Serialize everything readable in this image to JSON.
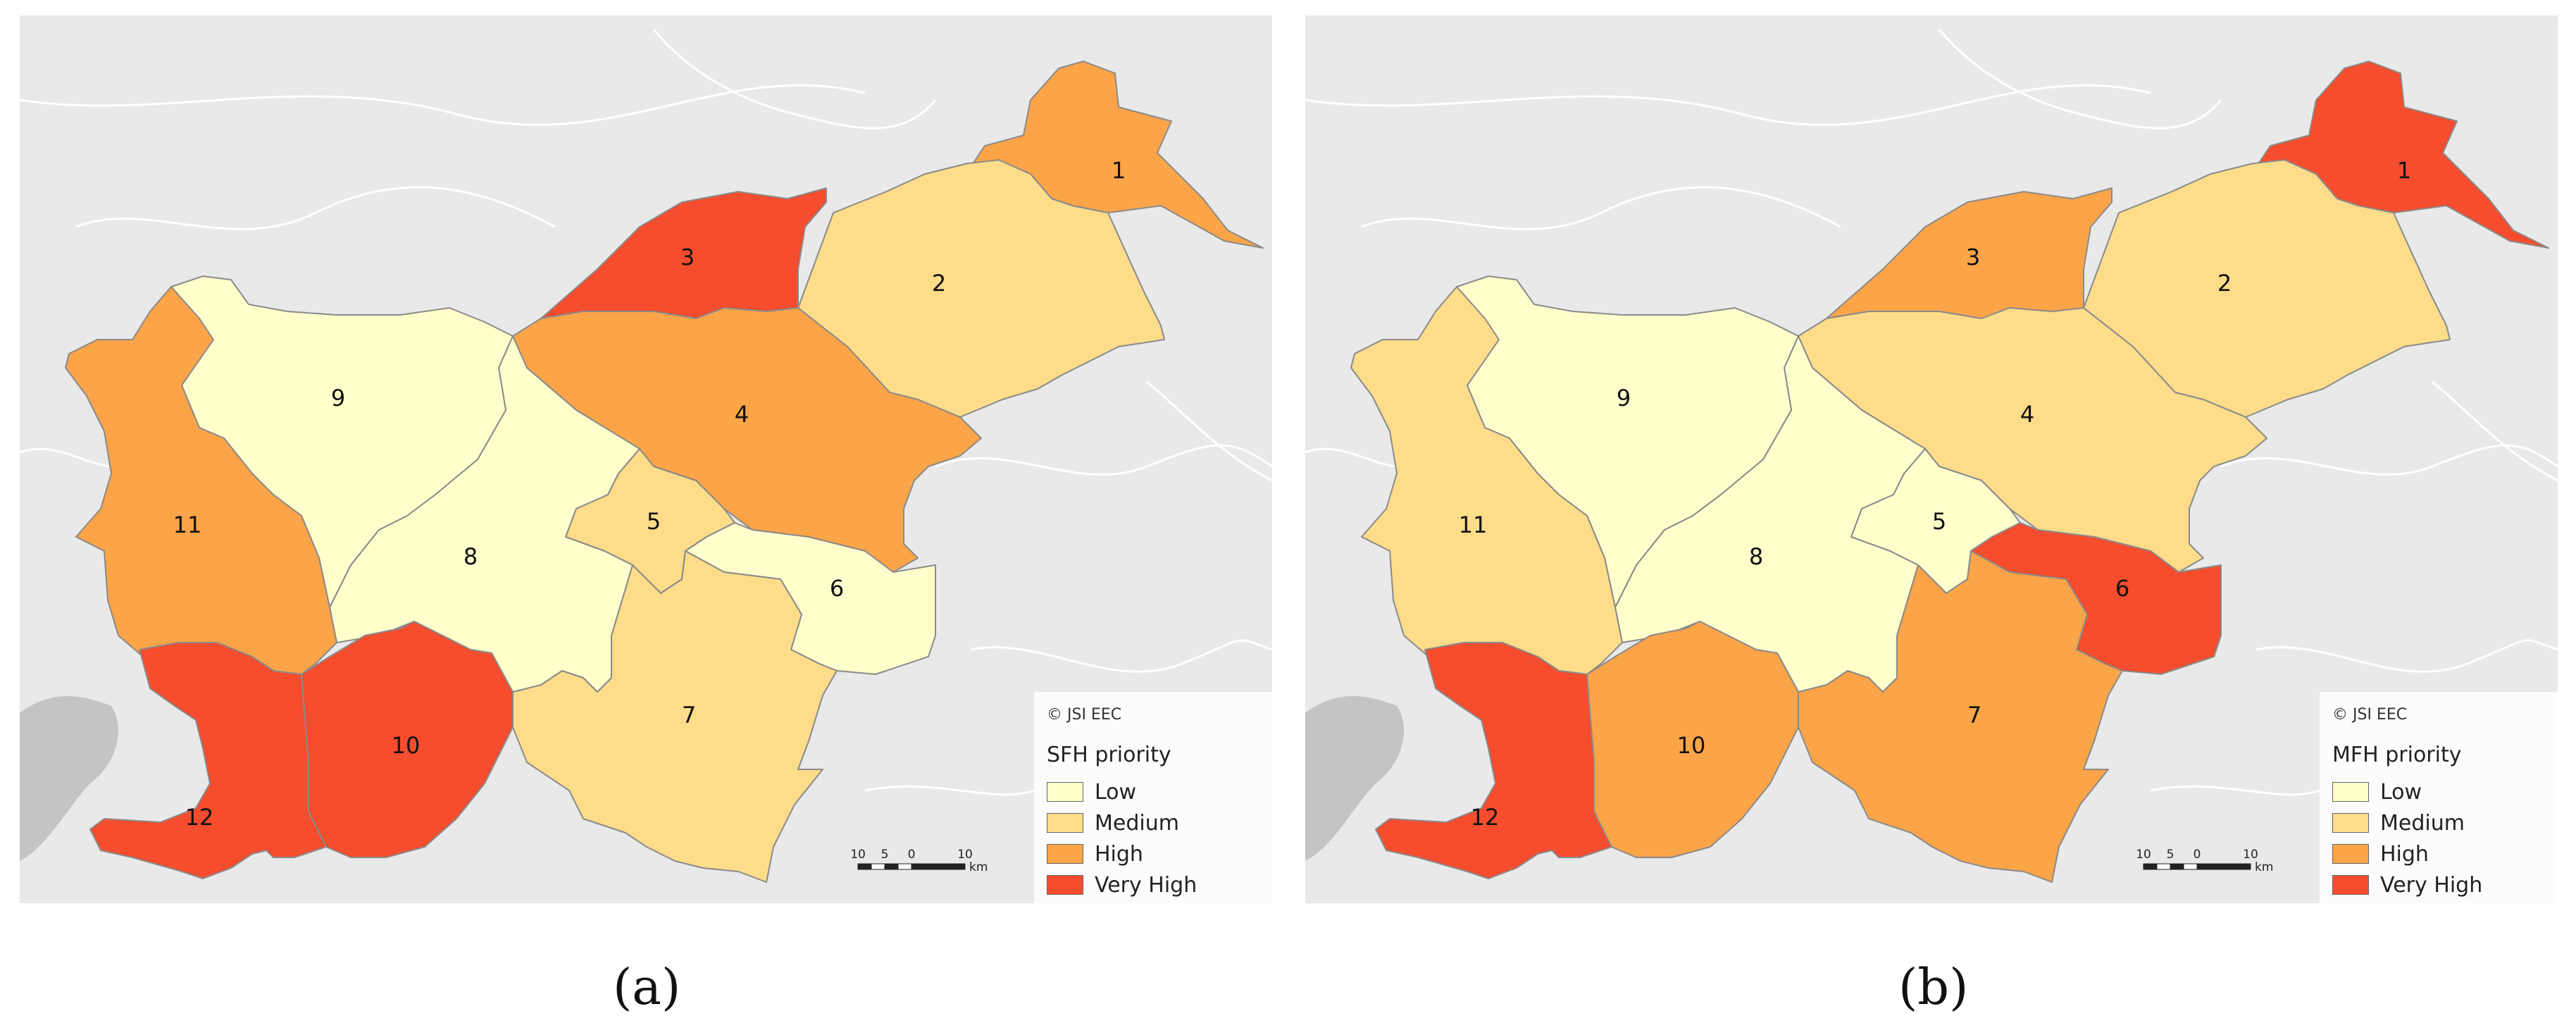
{
  "copyright": "© JSI EEC",
  "scale": {
    "ticks": [
      "10",
      "5",
      "0",
      "10"
    ],
    "unit": "km"
  },
  "legend_classes": [
    {
      "label": "Low",
      "color": "#ffffcc"
    },
    {
      "label": "Medium",
      "color": "#fddc8a"
    },
    {
      "label": "High",
      "color": "#fca448"
    },
    {
      "label": "Very High",
      "color": "#f54d2d"
    }
  ],
  "panels": [
    {
      "caption": "(a)",
      "legend_title": "SFH priority",
      "regions": {
        "1": "High",
        "2": "Medium",
        "3": "Very High",
        "4": "High",
        "5": "Medium",
        "6": "Low",
        "7": "Medium",
        "8": "Low",
        "9": "Low",
        "10": "Very High",
        "11": "High",
        "12": "Very High"
      }
    },
    {
      "caption": "(b)",
      "legend_title": "MFH priority",
      "regions": {
        "1": "Very High",
        "2": "Medium",
        "3": "High",
        "4": "Medium",
        "5": "Low",
        "6": "Very High",
        "7": "High",
        "8": "Low",
        "9": "Low",
        "10": "High",
        "11": "Medium",
        "12": "Very High"
      }
    }
  ]
}
